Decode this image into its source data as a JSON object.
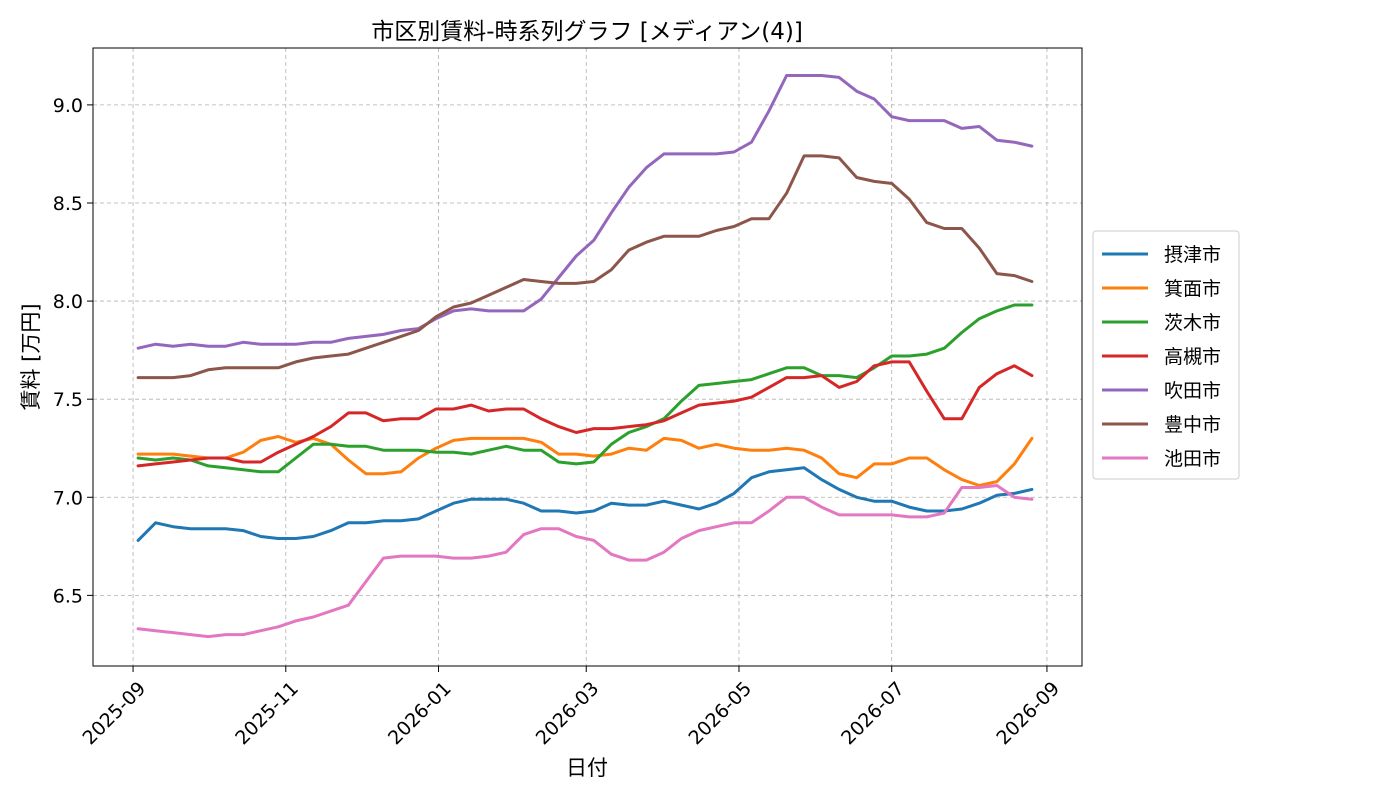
{
  "chart_data": {
    "type": "line",
    "title": "市区別賃料-時系列グラフ [メディアン(4)]",
    "xlabel": "日付",
    "ylabel": "賃料 [万円]",
    "x_ticks": [
      "2025-09",
      "2025-11",
      "2026-01",
      "2026-03",
      "2026-05",
      "2026-07",
      "2026-09"
    ],
    "y_ticks": [
      "6.5",
      "7.0",
      "7.5",
      "8.0",
      "8.5",
      "9.0"
    ],
    "xlim": [
      "2025-08-16",
      "2026-09-15"
    ],
    "ylim": [
      6.14,
      9.29
    ],
    "grid": true,
    "legend_position": "right",
    "x": [
      "2025-09-03",
      "2025-09-10",
      "2025-09-17",
      "2025-09-24",
      "2025-10-01",
      "2025-10-08",
      "2025-10-15",
      "2025-10-22",
      "2025-10-29",
      "2025-11-05",
      "2025-11-12",
      "2025-11-19",
      "2025-11-26",
      "2025-12-03",
      "2025-12-10",
      "2025-12-17",
      "2025-12-24",
      "2025-12-31",
      "2026-01-07",
      "2026-01-14",
      "2026-01-21",
      "2026-01-28",
      "2026-02-04",
      "2026-02-11",
      "2026-02-18",
      "2026-02-25",
      "2026-03-04",
      "2026-03-11",
      "2026-03-18",
      "2026-03-25",
      "2026-04-01",
      "2026-04-08",
      "2026-04-15",
      "2026-04-22",
      "2026-04-29",
      "2026-05-06",
      "2026-05-13",
      "2026-05-20",
      "2026-05-27",
      "2026-06-03",
      "2026-06-10",
      "2026-06-17",
      "2026-06-24",
      "2026-07-01",
      "2026-07-08",
      "2026-07-15",
      "2026-07-22",
      "2026-07-29",
      "2026-08-05",
      "2026-08-12",
      "2026-08-19",
      "2026-08-26"
    ],
    "series": [
      {
        "name": "摂津市",
        "color": "#1f77b4",
        "values": [
          6.78,
          6.87,
          6.85,
          6.84,
          6.84,
          6.84,
          6.83,
          6.8,
          6.79,
          6.79,
          6.8,
          6.83,
          6.87,
          6.87,
          6.88,
          6.88,
          6.89,
          6.93,
          6.97,
          6.99,
          6.99,
          6.99,
          6.97,
          6.93,
          6.93,
          6.92,
          6.93,
          6.97,
          6.96,
          6.96,
          6.98,
          6.96,
          6.94,
          6.97,
          7.02,
          7.1,
          7.13,
          7.14,
          7.15,
          7.09,
          7.04,
          7.0,
          6.98,
          6.98,
          6.95,
          6.93,
          6.93,
          6.94,
          6.97,
          7.01,
          7.02,
          7.04
        ]
      },
      {
        "name": "箕面市",
        "color": "#ff7f0e",
        "values": [
          7.22,
          7.22,
          7.22,
          7.21,
          7.2,
          7.2,
          7.23,
          7.29,
          7.31,
          7.28,
          7.3,
          7.27,
          7.19,
          7.12,
          7.12,
          7.13,
          7.2,
          7.25,
          7.29,
          7.3,
          7.3,
          7.3,
          7.3,
          7.28,
          7.22,
          7.22,
          7.21,
          7.22,
          7.25,
          7.24,
          7.3,
          7.29,
          7.25,
          7.27,
          7.25,
          7.24,
          7.24,
          7.25,
          7.24,
          7.2,
          7.12,
          7.1,
          7.17,
          7.17,
          7.2,
          7.2,
          7.14,
          7.09,
          7.06,
          7.08,
          7.17,
          7.3
        ]
      },
      {
        "name": "茨木市",
        "color": "#2ca02c",
        "values": [
          7.2,
          7.19,
          7.2,
          7.19,
          7.16,
          7.15,
          7.14,
          7.13,
          7.13,
          7.2,
          7.27,
          7.27,
          7.26,
          7.26,
          7.24,
          7.24,
          7.24,
          7.23,
          7.23,
          7.22,
          7.24,
          7.26,
          7.24,
          7.24,
          7.18,
          7.17,
          7.18,
          7.27,
          7.33,
          7.36,
          7.4,
          7.49,
          7.57,
          7.58,
          7.59,
          7.6,
          7.63,
          7.66,
          7.66,
          7.62,
          7.62,
          7.61,
          7.66,
          7.72,
          7.72,
          7.73,
          7.76,
          7.84,
          7.91,
          7.95,
          7.98,
          7.98
        ]
      },
      {
        "name": "高槻市",
        "color": "#d62728",
        "values": [
          7.16,
          7.17,
          7.18,
          7.19,
          7.2,
          7.2,
          7.18,
          7.18,
          7.23,
          7.27,
          7.31,
          7.36,
          7.43,
          7.43,
          7.39,
          7.4,
          7.4,
          7.45,
          7.45,
          7.47,
          7.44,
          7.45,
          7.45,
          7.4,
          7.36,
          7.33,
          7.35,
          7.35,
          7.36,
          7.37,
          7.39,
          7.43,
          7.47,
          7.48,
          7.49,
          7.51,
          7.56,
          7.61,
          7.61,
          7.62,
          7.56,
          7.59,
          7.67,
          7.69,
          7.69,
          7.54,
          7.4,
          7.4,
          7.56,
          7.63,
          7.67,
          7.62
        ]
      },
      {
        "name": "吹田市",
        "color": "#9467bd",
        "values": [
          7.76,
          7.78,
          7.77,
          7.78,
          7.77,
          7.77,
          7.79,
          7.78,
          7.78,
          7.78,
          7.79,
          7.79,
          7.81,
          7.82,
          7.83,
          7.85,
          7.86,
          7.91,
          7.95,
          7.96,
          7.95,
          7.95,
          7.95,
          8.01,
          8.12,
          8.23,
          8.31,
          8.45,
          8.58,
          8.68,
          8.75,
          8.75,
          8.75,
          8.75,
          8.76,
          8.81,
          8.97,
          9.15,
          9.15,
          9.15,
          9.14,
          9.07,
          9.03,
          8.94,
          8.92,
          8.92,
          8.92,
          8.88,
          8.89,
          8.82,
          8.81,
          8.79
        ]
      },
      {
        "name": "豊中市",
        "color": "#8c564b",
        "values": [
          7.61,
          7.61,
          7.61,
          7.62,
          7.65,
          7.66,
          7.66,
          7.66,
          7.66,
          7.69,
          7.71,
          7.72,
          7.73,
          7.76,
          7.79,
          7.82,
          7.85,
          7.92,
          7.97,
          7.99,
          8.03,
          8.07,
          8.11,
          8.1,
          8.09,
          8.09,
          8.1,
          8.16,
          8.26,
          8.3,
          8.33,
          8.33,
          8.33,
          8.36,
          8.38,
          8.42,
          8.42,
          8.55,
          8.74,
          8.74,
          8.73,
          8.63,
          8.61,
          8.6,
          8.52,
          8.4,
          8.37,
          8.37,
          8.27,
          8.14,
          8.13,
          8.1
        ]
      },
      {
        "name": "池田市",
        "color": "#e377c2",
        "values": [
          6.33,
          6.32,
          6.31,
          6.3,
          6.29,
          6.3,
          6.3,
          6.32,
          6.34,
          6.37,
          6.39,
          6.42,
          6.45,
          6.57,
          6.69,
          6.7,
          6.7,
          6.7,
          6.69,
          6.69,
          6.7,
          6.72,
          6.81,
          6.84,
          6.84,
          6.8,
          6.78,
          6.71,
          6.68,
          6.68,
          6.72,
          6.79,
          6.83,
          6.85,
          6.87,
          6.87,
          6.93,
          7.0,
          7.0,
          6.95,
          6.91,
          6.91,
          6.91,
          6.91,
          6.9,
          6.9,
          6.92,
          7.05,
          7.05,
          7.06,
          7.0,
          6.99
        ]
      }
    ]
  }
}
